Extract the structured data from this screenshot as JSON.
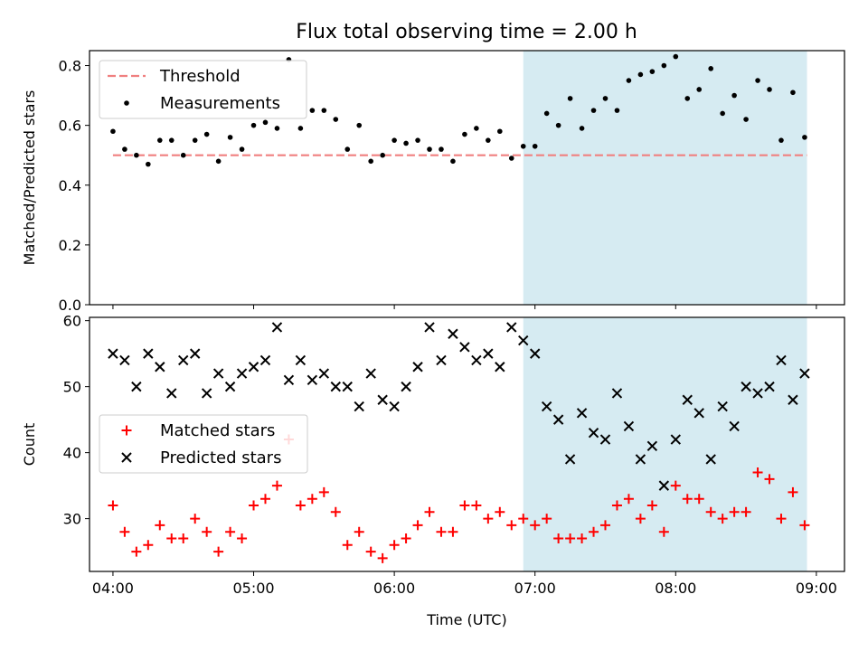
{
  "figure": {
    "title": "Flux total observing time = 2.00 h"
  },
  "chart_data": [
    {
      "type": "scatter",
      "panel": "top",
      "ylabel": "Matched/Predicted stars",
      "xlabel": "",
      "ylim": [
        0,
        0.85
      ],
      "xlim": [
        "03:50",
        "09:12"
      ],
      "yticks": [
        0.0,
        0.2,
        0.4,
        0.6,
        0.8
      ],
      "ytick_labels": [
        "0.0",
        "0.2",
        "0.4",
        "0.6",
        "0.8"
      ],
      "legend_position": "top-left",
      "shaded_region": {
        "from": "06:55",
        "to": "08:56",
        "color": "#add8e6"
      },
      "threshold": {
        "name": "Threshold",
        "value": 0.5,
        "from": "04:00",
        "to": "08:56",
        "color": "#f08080",
        "style": "dashed"
      },
      "series": [
        {
          "name": "Measurements",
          "color": "#000000",
          "marker": "dot",
          "x": [
            "04:00",
            "04:05",
            "04:10",
            "04:15",
            "04:20",
            "04:25",
            "04:30",
            "04:35",
            "04:40",
            "04:45",
            "04:50",
            "04:55",
            "05:00",
            "05:05",
            "05:10",
            "05:15",
            "05:20",
            "05:25",
            "05:30",
            "05:35",
            "05:40",
            "05:45",
            "05:50",
            "05:55",
            "06:00",
            "06:05",
            "06:10",
            "06:15",
            "06:20",
            "06:25",
            "06:30",
            "06:35",
            "06:40",
            "06:45",
            "06:50",
            "06:55",
            "07:00",
            "07:05",
            "07:10",
            "07:15",
            "07:20",
            "07:25",
            "07:30",
            "07:35",
            "07:40",
            "07:45",
            "07:50",
            "07:55",
            "08:00",
            "08:05",
            "08:10",
            "08:15",
            "08:20",
            "08:25",
            "08:30",
            "08:35",
            "08:40",
            "08:45",
            "08:50",
            "08:55"
          ],
          "y": [
            0.58,
            0.52,
            0.5,
            0.47,
            0.55,
            0.55,
            0.5,
            0.55,
            0.57,
            0.48,
            0.56,
            0.52,
            0.6,
            0.61,
            0.59,
            0.82,
            0.59,
            0.65,
            0.65,
            0.62,
            0.52,
            0.6,
            0.48,
            0.5,
            0.55,
            0.54,
            0.55,
            0.52,
            0.52,
            0.48,
            0.57,
            0.59,
            0.55,
            0.58,
            0.49,
            0.53,
            0.53,
            0.64,
            0.6,
            0.69,
            0.59,
            0.65,
            0.69,
            0.65,
            0.75,
            0.77,
            0.78,
            0.8,
            0.83,
            0.69,
            0.72,
            0.79,
            0.64,
            0.7,
            0.62,
            0.75,
            0.72,
            0.55,
            0.71,
            0.56
          ]
        }
      ]
    },
    {
      "type": "scatter",
      "panel": "bottom",
      "xlabel": "Time (UTC)",
      "ylabel": "Count",
      "ylim": [
        22,
        60.5
      ],
      "xlim": [
        "03:50",
        "09:12"
      ],
      "xticks": [
        "04:00",
        "05:00",
        "06:00",
        "07:00",
        "08:00",
        "09:00"
      ],
      "xtick_labels": [
        "04:00",
        "05:00",
        "06:00",
        "07:00",
        "08:00",
        "09:00"
      ],
      "yticks": [
        30,
        40,
        50,
        60
      ],
      "ytick_labels": [
        "30",
        "40",
        "50",
        "60"
      ],
      "legend_position": "center-left",
      "shaded_region": {
        "from": "06:55",
        "to": "08:56",
        "color": "#add8e6"
      },
      "series": [
        {
          "name": "Matched stars",
          "color": "#ff0000",
          "marker": "plus",
          "x": [
            "04:00",
            "04:05",
            "04:10",
            "04:15",
            "04:20",
            "04:25",
            "04:30",
            "04:35",
            "04:40",
            "04:45",
            "04:50",
            "04:55",
            "05:00",
            "05:05",
            "05:10",
            "05:15",
            "05:20",
            "05:25",
            "05:30",
            "05:35",
            "05:40",
            "05:45",
            "05:50",
            "05:55",
            "06:00",
            "06:05",
            "06:10",
            "06:15",
            "06:20",
            "06:25",
            "06:30",
            "06:35",
            "06:40",
            "06:45",
            "06:50",
            "06:55",
            "07:00",
            "07:05",
            "07:10",
            "07:15",
            "07:20",
            "07:25",
            "07:30",
            "07:35",
            "07:40",
            "07:45",
            "07:50",
            "07:55",
            "08:00",
            "08:05",
            "08:10",
            "08:15",
            "08:20",
            "08:25",
            "08:30",
            "08:35",
            "08:40",
            "08:45",
            "08:50",
            "08:55"
          ],
          "y": [
            32,
            28,
            25,
            26,
            29,
            27,
            27,
            30,
            28,
            25,
            28,
            27,
            32,
            33,
            35,
            42,
            32,
            33,
            34,
            31,
            26,
            28,
            25,
            24,
            26,
            27,
            29,
            31,
            28,
            28,
            32,
            32,
            30,
            31,
            29,
            30,
            29,
            30,
            27,
            27,
            27,
            28,
            29,
            32,
            33,
            30,
            32,
            28,
            35,
            33,
            33,
            31,
            30,
            31,
            31,
            37,
            36,
            30,
            34,
            29
          ]
        },
        {
          "name": "Predicted stars",
          "color": "#000000",
          "marker": "x",
          "x": [
            "04:00",
            "04:05",
            "04:10",
            "04:15",
            "04:20",
            "04:25",
            "04:30",
            "04:35",
            "04:40",
            "04:45",
            "04:50",
            "04:55",
            "05:00",
            "05:05",
            "05:10",
            "05:15",
            "05:20",
            "05:25",
            "05:30",
            "05:35",
            "05:40",
            "05:45",
            "05:50",
            "05:55",
            "06:00",
            "06:05",
            "06:10",
            "06:15",
            "06:20",
            "06:25",
            "06:30",
            "06:35",
            "06:40",
            "06:45",
            "06:50",
            "06:55",
            "07:00",
            "07:05",
            "07:10",
            "07:15",
            "07:20",
            "07:25",
            "07:30",
            "07:35",
            "07:40",
            "07:45",
            "07:50",
            "07:55",
            "08:00",
            "08:05",
            "08:10",
            "08:15",
            "08:20",
            "08:25",
            "08:30",
            "08:35",
            "08:40",
            "08:45",
            "08:50",
            "08:55"
          ],
          "y": [
            55,
            54,
            50,
            55,
            53,
            49,
            54,
            55,
            49,
            52,
            50,
            52,
            53,
            54,
            59,
            51,
            54,
            51,
            52,
            50,
            50,
            47,
            52,
            48,
            47,
            50,
            53,
            59,
            54,
            58,
            56,
            54,
            55,
            53,
            59,
            57,
            55,
            47,
            45,
            39,
            46,
            43,
            42,
            49,
            44,
            39,
            41,
            35,
            42,
            48,
            46,
            39,
            47,
            44,
            50,
            49,
            50,
            54,
            48,
            52
          ]
        }
      ]
    }
  ]
}
